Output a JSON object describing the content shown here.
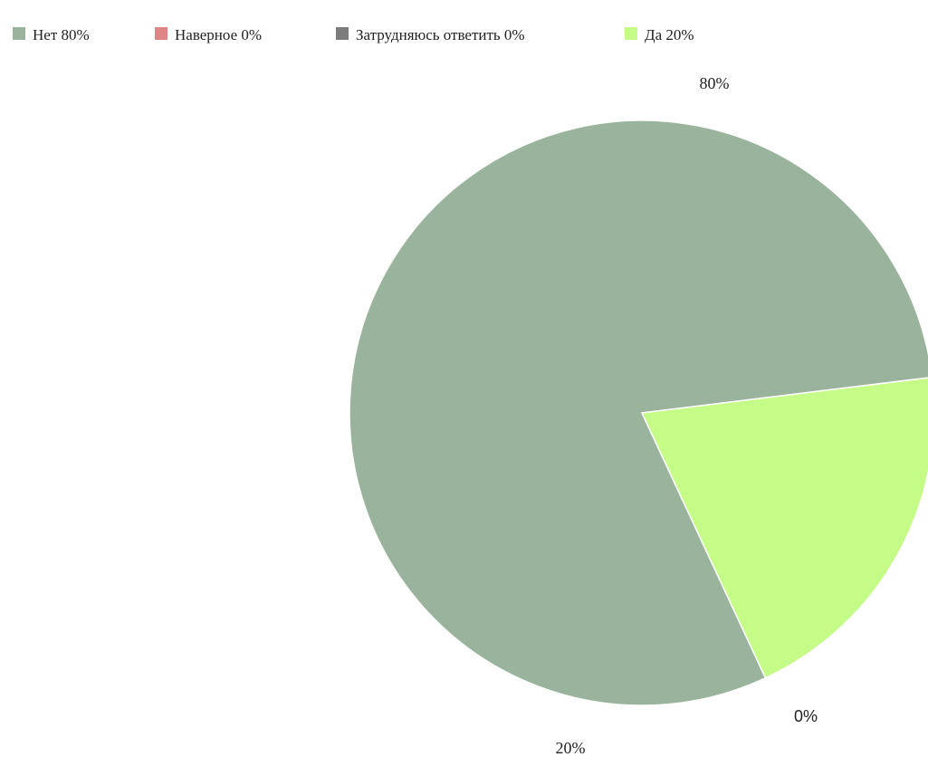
{
  "chart_data": {
    "type": "pie",
    "legend_position": "top",
    "slices": [
      {
        "label": "Нет",
        "value": 80,
        "legend_text": "Нет 80%",
        "data_label": "80%",
        "color": "#9AB39C"
      },
      {
        "label": "Наверное",
        "value": 0,
        "legend_text": "Наверное 0%",
        "data_label": "",
        "color": "#E08585"
      },
      {
        "label": "Затрудняюсь ответить",
        "value": 0,
        "legend_text": "Затрудняюсь ответить 0%",
        "data_label": "0%",
        "color": "#7C7C7C"
      },
      {
        "label": "Да",
        "value": 20,
        "legend_text": "Да 20%",
        "data_label": "20%",
        "color": "#C5FC88"
      }
    ]
  }
}
